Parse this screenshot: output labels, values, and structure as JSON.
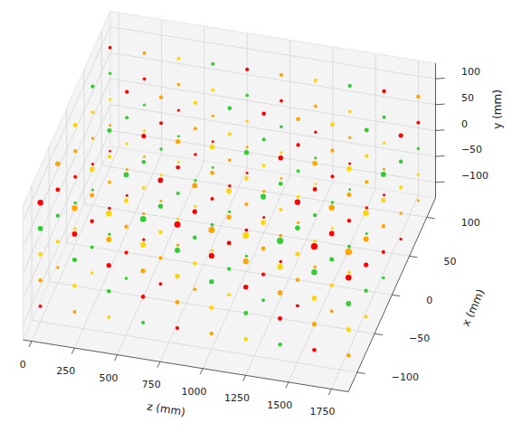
{
  "chart_data": {
    "type": "scatter",
    "xlabel": "x (mm)",
    "ylabel": "y (mm)",
    "zlabel": "z (mm)",
    "xlim": [
      -125,
      125
    ],
    "ylim": [
      -130,
      130
    ],
    "zlim": [
      -50,
      1850
    ],
    "xticks": [
      -100,
      -50,
      0,
      50,
      100
    ],
    "yticks": [
      -100,
      -50,
      0,
      50,
      100
    ],
    "zticks": [
      0,
      250,
      500,
      750,
      1000,
      1250,
      1500,
      1750
    ],
    "grid": true,
    "series": [
      {
        "color": "red",
        "values": [
          [
            -100,
            -100,
            0
          ],
          [
            -100,
            100,
            0
          ],
          [
            -50,
            50,
            0
          ],
          [
            0,
            0,
            0
          ],
          [
            50,
            -50,
            0
          ],
          [
            100,
            -100,
            0
          ],
          [
            100,
            100,
            0
          ],
          [
            -100,
            50,
            200
          ],
          [
            -50,
            0,
            200
          ],
          [
            0,
            -50,
            200
          ],
          [
            50,
            -100,
            200
          ],
          [
            50,
            100,
            200
          ],
          [
            100,
            50,
            200
          ],
          [
            -100,
            0,
            400
          ],
          [
            -50,
            -50,
            400
          ],
          [
            0,
            -100,
            400
          ],
          [
            0,
            100,
            400
          ],
          [
            50,
            50,
            400
          ],
          [
            100,
            0,
            400
          ],
          [
            -100,
            -50,
            600
          ],
          [
            -50,
            -100,
            600
          ],
          [
            -50,
            100,
            600
          ],
          [
            0,
            50,
            600
          ],
          [
            50,
            0,
            600
          ],
          [
            100,
            -50,
            600
          ],
          [
            -100,
            -100,
            800
          ],
          [
            -100,
            100,
            800
          ],
          [
            -50,
            50,
            800
          ],
          [
            0,
            0,
            800
          ],
          [
            50,
            -50,
            800
          ],
          [
            100,
            -100,
            800
          ],
          [
            100,
            100,
            800
          ],
          [
            -100,
            50,
            1000
          ],
          [
            -50,
            0,
            1000
          ],
          [
            0,
            -50,
            1000
          ],
          [
            50,
            -100,
            1000
          ],
          [
            50,
            100,
            1000
          ],
          [
            100,
            50,
            1000
          ],
          [
            -100,
            0,
            1200
          ],
          [
            -50,
            -50,
            1200
          ],
          [
            0,
            -100,
            1200
          ],
          [
            0,
            100,
            1200
          ],
          [
            50,
            50,
            1200
          ],
          [
            100,
            0,
            1200
          ],
          [
            -100,
            -50,
            1400
          ],
          [
            -50,
            -100,
            1400
          ],
          [
            -50,
            100,
            1400
          ],
          [
            0,
            50,
            1400
          ],
          [
            50,
            0,
            1400
          ],
          [
            100,
            -50,
            1400
          ],
          [
            -100,
            -100,
            1600
          ],
          [
            -100,
            100,
            1600
          ],
          [
            -50,
            50,
            1600
          ],
          [
            0,
            0,
            1600
          ],
          [
            50,
            -50,
            1600
          ],
          [
            100,
            -100,
            1600
          ],
          [
            100,
            100,
            1600
          ],
          [
            -100,
            50,
            1800
          ],
          [
            -50,
            0,
            1800
          ],
          [
            0,
            -50,
            1800
          ],
          [
            50,
            -100,
            1800
          ],
          [
            50,
            100,
            1800
          ],
          [
            100,
            50,
            1800
          ]
        ]
      },
      {
        "color": "orange",
        "values": [
          [
            -100,
            -50,
            0
          ],
          [
            -50,
            -100,
            0
          ],
          [
            -50,
            100,
            0
          ],
          [
            0,
            50,
            0
          ],
          [
            50,
            0,
            0
          ],
          [
            100,
            -50,
            0
          ],
          [
            -100,
            -100,
            200
          ],
          [
            -100,
            100,
            200
          ],
          [
            -50,
            50,
            200
          ],
          [
            0,
            0,
            200
          ],
          [
            50,
            -50,
            200
          ],
          [
            100,
            -100,
            200
          ],
          [
            100,
            100,
            200
          ],
          [
            -100,
            50,
            400
          ],
          [
            -50,
            0,
            400
          ],
          [
            0,
            -50,
            400
          ],
          [
            50,
            -100,
            400
          ],
          [
            50,
            100,
            400
          ],
          [
            100,
            50,
            400
          ],
          [
            -100,
            0,
            600
          ],
          [
            -50,
            -50,
            600
          ],
          [
            0,
            -100,
            600
          ],
          [
            0,
            100,
            600
          ],
          [
            50,
            50,
            600
          ],
          [
            100,
            0,
            600
          ],
          [
            -100,
            -50,
            800
          ],
          [
            -50,
            -100,
            800
          ],
          [
            -50,
            100,
            800
          ],
          [
            0,
            50,
            800
          ],
          [
            50,
            0,
            800
          ],
          [
            100,
            -50,
            800
          ],
          [
            -100,
            -100,
            1000
          ],
          [
            -100,
            100,
            1000
          ],
          [
            -50,
            50,
            1000
          ],
          [
            0,
            0,
            1000
          ],
          [
            50,
            -50,
            1000
          ],
          [
            100,
            -100,
            1000
          ],
          [
            100,
            100,
            1000
          ],
          [
            -100,
            50,
            1200
          ],
          [
            -50,
            0,
            1200
          ],
          [
            0,
            -50,
            1200
          ],
          [
            50,
            -100,
            1200
          ],
          [
            50,
            100,
            1200
          ],
          [
            100,
            50,
            1200
          ],
          [
            -100,
            0,
            1400
          ],
          [
            -50,
            -50,
            1400
          ],
          [
            0,
            -100,
            1400
          ],
          [
            0,
            100,
            1400
          ],
          [
            50,
            50,
            1400
          ],
          [
            100,
            0,
            1400
          ],
          [
            -100,
            -50,
            1600
          ],
          [
            -50,
            -100,
            1600
          ],
          [
            -50,
            100,
            1600
          ],
          [
            0,
            50,
            1600
          ],
          [
            50,
            0,
            1600
          ],
          [
            100,
            -50,
            1600
          ],
          [
            -100,
            -100,
            1800
          ],
          [
            -100,
            100,
            1800
          ],
          [
            -50,
            50,
            1800
          ],
          [
            0,
            0,
            1800
          ],
          [
            50,
            -50,
            1800
          ],
          [
            100,
            -100,
            1800
          ],
          [
            100,
            100,
            1800
          ]
        ]
      },
      {
        "color": "gold",
        "values": [
          [
            -100,
            0,
            0
          ],
          [
            -50,
            -50,
            0
          ],
          [
            0,
            -100,
            0
          ],
          [
            0,
            100,
            0
          ],
          [
            50,
            50,
            0
          ],
          [
            100,
            0,
            0
          ],
          [
            -100,
            -50,
            200
          ],
          [
            -50,
            -100,
            200
          ],
          [
            -50,
            100,
            200
          ],
          [
            0,
            50,
            200
          ],
          [
            50,
            0,
            200
          ],
          [
            100,
            -50,
            200
          ],
          [
            -100,
            -100,
            400
          ],
          [
            -100,
            100,
            400
          ],
          [
            -50,
            50,
            400
          ],
          [
            0,
            0,
            400
          ],
          [
            50,
            -50,
            400
          ],
          [
            100,
            -100,
            400
          ],
          [
            100,
            100,
            400
          ],
          [
            -100,
            50,
            600
          ],
          [
            -50,
            0,
            600
          ],
          [
            0,
            -50,
            600
          ],
          [
            50,
            -100,
            600
          ],
          [
            50,
            100,
            600
          ],
          [
            100,
            50,
            600
          ],
          [
            -100,
            0,
            800
          ],
          [
            -50,
            -50,
            800
          ],
          [
            0,
            -100,
            800
          ],
          [
            0,
            100,
            800
          ],
          [
            50,
            50,
            800
          ],
          [
            100,
            0,
            800
          ],
          [
            -100,
            -50,
            1000
          ],
          [
            -50,
            -100,
            1000
          ],
          [
            -50,
            100,
            1000
          ],
          [
            0,
            50,
            1000
          ],
          [
            50,
            0,
            1000
          ],
          [
            100,
            -50,
            1000
          ],
          [
            -100,
            -100,
            1200
          ],
          [
            -100,
            100,
            1200
          ],
          [
            -50,
            50,
            1200
          ],
          [
            0,
            0,
            1200
          ],
          [
            50,
            -50,
            1200
          ],
          [
            100,
            -100,
            1200
          ],
          [
            100,
            100,
            1200
          ],
          [
            -100,
            50,
            1400
          ],
          [
            -50,
            0,
            1400
          ],
          [
            0,
            -50,
            1400
          ],
          [
            50,
            -100,
            1400
          ],
          [
            50,
            100,
            1400
          ],
          [
            100,
            50,
            1400
          ],
          [
            -100,
            0,
            1600
          ],
          [
            -50,
            -50,
            1600
          ],
          [
            0,
            -100,
            1600
          ],
          [
            0,
            100,
            1600
          ],
          [
            50,
            50,
            1600
          ],
          [
            100,
            0,
            1600
          ],
          [
            -100,
            -50,
            1800
          ],
          [
            -50,
            -100,
            1800
          ],
          [
            -50,
            100,
            1800
          ],
          [
            0,
            50,
            1800
          ],
          [
            50,
            0,
            1800
          ],
          [
            100,
            -50,
            1800
          ]
        ]
      },
      {
        "color": "limegreen",
        "values": [
          [
            -100,
            50,
            0
          ],
          [
            -50,
            0,
            0
          ],
          [
            0,
            -50,
            0
          ],
          [
            50,
            -100,
            0
          ],
          [
            50,
            100,
            0
          ],
          [
            100,
            50,
            0
          ],
          [
            -100,
            0,
            200
          ],
          [
            -50,
            -50,
            200
          ],
          [
            0,
            -100,
            200
          ],
          [
            0,
            100,
            200
          ],
          [
            50,
            50,
            200
          ],
          [
            100,
            0,
            200
          ],
          [
            -100,
            -50,
            400
          ],
          [
            -50,
            -100,
            400
          ],
          [
            -50,
            100,
            400
          ],
          [
            0,
            50,
            400
          ],
          [
            50,
            0,
            400
          ],
          [
            100,
            -50,
            400
          ],
          [
            -100,
            -100,
            600
          ],
          [
            -100,
            100,
            600
          ],
          [
            -50,
            50,
            600
          ],
          [
            0,
            0,
            600
          ],
          [
            50,
            -50,
            600
          ],
          [
            100,
            -100,
            600
          ],
          [
            100,
            100,
            600
          ],
          [
            -100,
            50,
            800
          ],
          [
            -50,
            0,
            800
          ],
          [
            0,
            -50,
            800
          ],
          [
            50,
            -100,
            800
          ],
          [
            50,
            100,
            800
          ],
          [
            100,
            50,
            800
          ],
          [
            -100,
            0,
            1000
          ],
          [
            -50,
            -50,
            1000
          ],
          [
            0,
            -100,
            1000
          ],
          [
            0,
            100,
            1000
          ],
          [
            50,
            50,
            1000
          ],
          [
            100,
            0,
            1000
          ],
          [
            -100,
            -50,
            1200
          ],
          [
            -50,
            -100,
            1200
          ],
          [
            -50,
            100,
            1200
          ],
          [
            0,
            50,
            1200
          ],
          [
            50,
            0,
            1200
          ],
          [
            100,
            -50,
            1200
          ],
          [
            -100,
            -100,
            1400
          ],
          [
            -100,
            100,
            1400
          ],
          [
            -50,
            50,
            1400
          ],
          [
            0,
            0,
            1400
          ],
          [
            50,
            -50,
            1400
          ],
          [
            100,
            -100,
            1400
          ],
          [
            100,
            100,
            1400
          ],
          [
            -100,
            50,
            1600
          ],
          [
            -50,
            0,
            1600
          ],
          [
            0,
            -50,
            1600
          ],
          [
            50,
            -100,
            1600
          ],
          [
            50,
            100,
            1600
          ],
          [
            100,
            50,
            1600
          ],
          [
            -100,
            0,
            1800
          ],
          [
            -50,
            -50,
            1800
          ],
          [
            0,
            -100,
            1800
          ],
          [
            0,
            100,
            1800
          ],
          [
            50,
            50,
            1800
          ],
          [
            100,
            0,
            1800
          ]
        ]
      }
    ]
  }
}
